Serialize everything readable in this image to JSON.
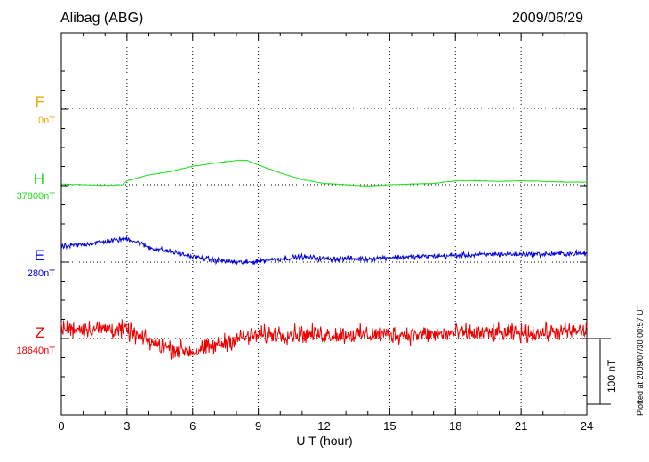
{
  "header": {
    "station": "Alibag (ABG)",
    "date": "2009/06/29"
  },
  "plotted_note": "Plotted at 2009/07/30 00:57 UT",
  "scale_bar_label": "100 nT",
  "colors": {
    "F": "#f0a800",
    "H": "#22dd22",
    "E": "#0000dd",
    "Z": "#ee0000",
    "axis": "#000000",
    "grid": "#000000"
  },
  "chart_data": {
    "type": "line",
    "xlabel": "U T (hour)",
    "xlim": [
      0,
      24
    ],
    "xticks": [
      "0",
      "3",
      "6",
      "9",
      "12",
      "15",
      "18",
      "21",
      "24"
    ],
    "scale_bar_nT": 100,
    "series": [
      {
        "name": "F",
        "baseline_label": "0nT",
        "baseline_nT": 0,
        "x": [],
        "y": []
      },
      {
        "name": "H",
        "baseline_label": "37800nT",
        "baseline_nT": 37800,
        "x": [
          0,
          1,
          2,
          2.8,
          3,
          4,
          5,
          6,
          7,
          8,
          8.5,
          9,
          10,
          11,
          12,
          13,
          14,
          15,
          16,
          17,
          18,
          19,
          20,
          21,
          22,
          23,
          24
        ],
        "y": [
          37801,
          37800,
          37799,
          37800,
          37806,
          37815,
          37820,
          37828,
          37833,
          37837,
          37837,
          37830,
          37818,
          37808,
          37802,
          37800,
          37798,
          37800,
          37801,
          37802,
          37806,
          37806,
          37805,
          37806,
          37805,
          37804,
          37804
        ],
        "noise_nT": 0.5
      },
      {
        "name": "E",
        "baseline_label": "280nT",
        "baseline_nT": 280,
        "x": [
          0,
          1,
          2,
          2.8,
          3,
          3.5,
          4,
          5,
          6,
          7,
          8,
          8.5,
          9,
          10,
          11,
          12,
          13,
          14,
          15,
          16,
          17,
          18,
          19,
          20,
          21,
          22,
          23,
          24
        ],
        "y": [
          303,
          307,
          311,
          315,
          316,
          310,
          302,
          296,
          288,
          283,
          280,
          279,
          282,
          285,
          288,
          285,
          285,
          285,
          287,
          288,
          289,
          290,
          291,
          292,
          292,
          292,
          293,
          293
        ],
        "noise_nT": 3.5
      },
      {
        "name": "Z",
        "baseline_label": "18640nT",
        "baseline_nT": 18640,
        "x": [
          0,
          1,
          2,
          3,
          3.5,
          4,
          5,
          6,
          7,
          8,
          9,
          10,
          11,
          12,
          13,
          14,
          15,
          16,
          17,
          18,
          19,
          20,
          21,
          22,
          23,
          24
        ],
        "y": [
          18655,
          18655,
          18655,
          18652,
          18643,
          18635,
          18625,
          18620,
          18628,
          18640,
          18645,
          18647,
          18647,
          18646,
          18646,
          18646,
          18646,
          18646,
          18646,
          18648,
          18648,
          18648,
          18648,
          18649,
          18650,
          18652
        ],
        "noise_nT": 12
      }
    ]
  }
}
